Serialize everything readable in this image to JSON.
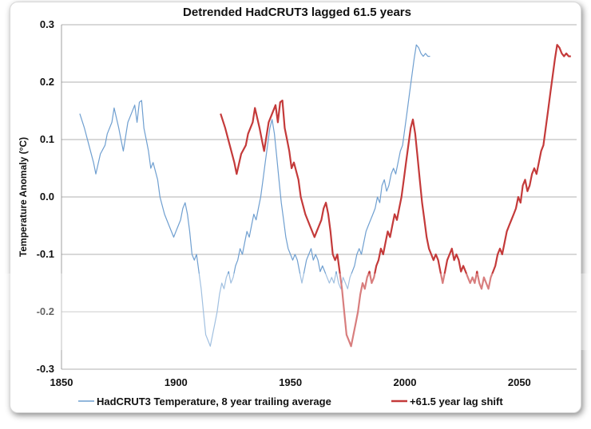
{
  "chart_data": {
    "type": "line",
    "title": "Detrended HadCRUT3 lagged 61.5 years",
    "xlabel": "",
    "ylabel": "Temperature Anomaly (°C)",
    "xlim": [
      1850,
      2075
    ],
    "ylim": [
      -0.3,
      0.3
    ],
    "xticks": [
      "1850",
      "1900",
      "1950",
      "2000",
      "2050"
    ],
    "yticks": [
      "0.3",
      "0.2",
      "0.1",
      "0.0",
      "-0.1",
      "-0.2",
      "-0.3"
    ],
    "grid": "horizontal",
    "legend_position": "bottom",
    "series": [
      {
        "name": "HadCRUT3 Temperature, 8 year trailing average",
        "color": "#6f9fd0",
        "x": [
          1858,
          1860,
          1862,
          1864,
          1865,
          1867,
          1869,
          1870,
          1872,
          1873,
          1875,
          1876,
          1877,
          1879,
          1880,
          1882,
          1883,
          1884,
          1885,
          1886,
          1887,
          1888,
          1889,
          1890,
          1892,
          1893,
          1895,
          1897,
          1899,
          1900,
          1901,
          1902,
          1903,
          1904,
          1905,
          1906,
          1907,
          1908,
          1909,
          1910,
          1911,
          1912,
          1913,
          1914,
          1915,
          1916,
          1917,
          1918,
          1919,
          1920,
          1921,
          1922,
          1923,
          1924,
          1925,
          1926,
          1927,
          1928,
          1929,
          1930,
          1931,
          1932,
          1933,
          1934,
          1935,
          1936,
          1937,
          1938,
          1939,
          1940,
          1941,
          1942,
          1943,
          1944,
          1945,
          1946,
          1947,
          1948,
          1949,
          1950,
          1951,
          1952,
          1953,
          1954,
          1955,
          1956,
          1957,
          1958,
          1959,
          1960,
          1961,
          1962,
          1963,
          1964,
          1965,
          1966,
          1967,
          1968,
          1969,
          1970,
          1971,
          1972,
          1973,
          1974,
          1975,
          1976,
          1977,
          1978,
          1979,
          1980,
          1981,
          1982,
          1983,
          1984,
          1985,
          1986,
          1987,
          1988,
          1989,
          1990,
          1991,
          1992,
          1993,
          1994,
          1995,
          1996,
          1997,
          1998,
          1999,
          2000,
          2001,
          2002,
          2003,
          2004,
          2005,
          2006,
          2007,
          2008,
          2009,
          2010,
          2011
        ],
        "y": [
          0.145,
          0.12,
          0.09,
          0.06,
          0.04,
          0.075,
          0.09,
          0.11,
          0.13,
          0.155,
          0.12,
          0.1,
          0.08,
          0.13,
          0.14,
          0.16,
          0.13,
          0.165,
          0.168,
          0.12,
          0.1,
          0.08,
          0.05,
          0.06,
          0.03,
          0.0,
          -0.03,
          -0.05,
          -0.07,
          -0.06,
          -0.05,
          -0.04,
          -0.02,
          -0.01,
          -0.03,
          -0.06,
          -0.1,
          -0.11,
          -0.1,
          -0.13,
          -0.16,
          -0.2,
          -0.24,
          -0.25,
          -0.26,
          -0.24,
          -0.22,
          -0.2,
          -0.17,
          -0.15,
          -0.16,
          -0.14,
          -0.13,
          -0.15,
          -0.14,
          -0.12,
          -0.11,
          -0.09,
          -0.1,
          -0.08,
          -0.06,
          -0.07,
          -0.05,
          -0.03,
          -0.04,
          -0.02,
          0.0,
          0.03,
          0.06,
          0.09,
          0.12,
          0.135,
          0.11,
          0.07,
          0.03,
          -0.01,
          -0.04,
          -0.07,
          -0.09,
          -0.1,
          -0.11,
          -0.1,
          -0.11,
          -0.13,
          -0.15,
          -0.13,
          -0.11,
          -0.1,
          -0.09,
          -0.11,
          -0.1,
          -0.11,
          -0.13,
          -0.12,
          -0.13,
          -0.14,
          -0.15,
          -0.14,
          -0.15,
          -0.13,
          -0.15,
          -0.16,
          -0.14,
          -0.15,
          -0.16,
          -0.14,
          -0.13,
          -0.12,
          -0.1,
          -0.09,
          -0.1,
          -0.08,
          -0.06,
          -0.05,
          -0.04,
          -0.03,
          -0.02,
          0.0,
          -0.01,
          0.02,
          0.03,
          0.01,
          0.02,
          0.04,
          0.05,
          0.04,
          0.06,
          0.08,
          0.09,
          0.12,
          0.15,
          0.18,
          0.21,
          0.24,
          0.265,
          0.26,
          0.25,
          0.245,
          0.25,
          0.245,
          0.245
        ]
      },
      {
        "name": "+61.5 year lag shift",
        "color": "#c43a3a",
        "x": [
          1919.5,
          1921.5,
          1923.5,
          1925.5,
          1926.5,
          1928.5,
          1930.5,
          1931.5,
          1933.5,
          1934.5,
          1936.5,
          1937.5,
          1938.5,
          1940.5,
          1941.5,
          1943.5,
          1944.5,
          1945.5,
          1946.5,
          1947.5,
          1948.5,
          1949.5,
          1950.5,
          1951.5,
          1953.5,
          1954.5,
          1956.5,
          1958.5,
          1960.5,
          1961.5,
          1962.5,
          1963.5,
          1964.5,
          1965.5,
          1966.5,
          1967.5,
          1968.5,
          1969.5,
          1970.5,
          1971.5,
          1972.5,
          1973.5,
          1974.5,
          1975.5,
          1976.5,
          1977.5,
          1978.5,
          1979.5,
          1980.5,
          1981.5,
          1982.5,
          1983.5,
          1984.5,
          1985.5,
          1986.5,
          1987.5,
          1988.5,
          1989.5,
          1990.5,
          1991.5,
          1992.5,
          1993.5,
          1994.5,
          1995.5,
          1996.5,
          1997.5,
          1998.5,
          1999.5,
          2000.5,
          2001.5,
          2002.5,
          2003.5,
          2004.5,
          2005.5,
          2006.5,
          2007.5,
          2008.5,
          2009.5,
          2010.5,
          2011.5,
          2012.5,
          2013.5,
          2014.5,
          2015.5,
          2016.5,
          2017.5,
          2018.5,
          2019.5,
          2020.5,
          2021.5,
          2022.5,
          2023.5,
          2024.5,
          2025.5,
          2026.5,
          2027.5,
          2028.5,
          2029.5,
          2030.5,
          2031.5,
          2032.5,
          2033.5,
          2034.5,
          2035.5,
          2036.5,
          2037.5,
          2038.5,
          2039.5,
          2040.5,
          2041.5,
          2042.5,
          2043.5,
          2044.5,
          2045.5,
          2046.5,
          2047.5,
          2048.5,
          2049.5,
          2050.5,
          2051.5,
          2052.5,
          2053.5,
          2054.5,
          2055.5,
          2056.5,
          2057.5,
          2058.5,
          2059.5,
          2060.5,
          2061.5,
          2062.5,
          2063.5,
          2064.5,
          2065.5,
          2066.5,
          2067.5,
          2068.5,
          2069.5,
          2070.5,
          2071.5,
          2072.5
        ],
        "y": [
          0.145,
          0.12,
          0.09,
          0.06,
          0.04,
          0.075,
          0.09,
          0.11,
          0.13,
          0.155,
          0.12,
          0.1,
          0.08,
          0.13,
          0.14,
          0.16,
          0.13,
          0.165,
          0.168,
          0.12,
          0.1,
          0.08,
          0.05,
          0.06,
          0.03,
          0.0,
          -0.03,
          -0.05,
          -0.07,
          -0.06,
          -0.05,
          -0.04,
          -0.02,
          -0.01,
          -0.03,
          -0.06,
          -0.1,
          -0.11,
          -0.1,
          -0.13,
          -0.16,
          -0.2,
          -0.24,
          -0.25,
          -0.26,
          -0.24,
          -0.22,
          -0.2,
          -0.17,
          -0.15,
          -0.16,
          -0.14,
          -0.13,
          -0.15,
          -0.14,
          -0.12,
          -0.11,
          -0.09,
          -0.1,
          -0.08,
          -0.06,
          -0.07,
          -0.05,
          -0.03,
          -0.04,
          -0.02,
          0.0,
          0.03,
          0.06,
          0.09,
          0.12,
          0.135,
          0.11,
          0.07,
          0.03,
          -0.01,
          -0.04,
          -0.07,
          -0.09,
          -0.1,
          -0.11,
          -0.1,
          -0.11,
          -0.13,
          -0.15,
          -0.13,
          -0.11,
          -0.1,
          -0.09,
          -0.11,
          -0.1,
          -0.11,
          -0.13,
          -0.12,
          -0.13,
          -0.14,
          -0.15,
          -0.14,
          -0.15,
          -0.13,
          -0.15,
          -0.16,
          -0.14,
          -0.15,
          -0.16,
          -0.14,
          -0.13,
          -0.12,
          -0.1,
          -0.09,
          -0.1,
          -0.08,
          -0.06,
          -0.05,
          -0.04,
          -0.03,
          -0.02,
          0.0,
          -0.01,
          0.02,
          0.03,
          0.01,
          0.02,
          0.04,
          0.05,
          0.04,
          0.06,
          0.08,
          0.09,
          0.12,
          0.15,
          0.18,
          0.21,
          0.24,
          0.265,
          0.26,
          0.25,
          0.245,
          0.25,
          0.245,
          0.245
        ]
      }
    ]
  }
}
